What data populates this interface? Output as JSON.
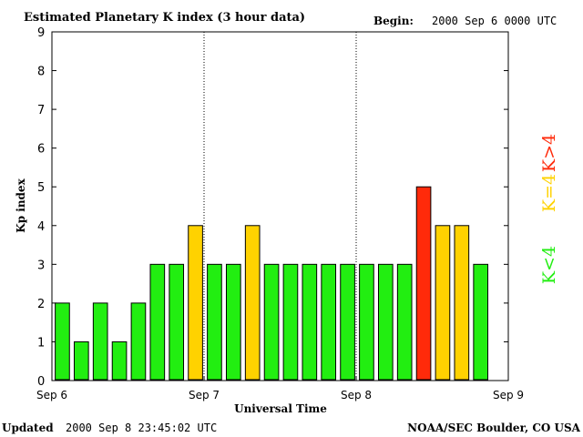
{
  "header": {
    "title": "Estimated Planetary K index (3 hour data)",
    "begin_label": "Begin:",
    "begin_value": "2000 Sep 6 0000 UTC"
  },
  "footer": {
    "updated_label": "Updated",
    "updated_value": "2000 Sep  8 23:45:02 UTC",
    "credit": "NOAA/SEC Boulder, CO USA"
  },
  "legend": {
    "high": "K>4",
    "equal": "K=4",
    "low": "K<4"
  },
  "colors": {
    "low": "#22ee11",
    "equal": "#ffd200",
    "high": "#ff2a0a"
  },
  "chart_data": {
    "type": "bar",
    "title": "Estimated Planetary K index (3 hour data)",
    "xlabel": "Universal Time",
    "ylabel": "Kp index",
    "ylim": [
      0,
      9
    ],
    "yticks": [
      "0",
      "1",
      "2",
      "3",
      "4",
      "5",
      "6",
      "7",
      "8",
      "9"
    ],
    "xticks": [
      "Sep 6",
      "Sep 7",
      "Sep 8",
      "Sep 9"
    ],
    "slots_total": 24,
    "values": [
      2,
      1,
      2,
      1,
      2,
      3,
      3,
      4,
      3,
      3,
      4,
      3,
      3,
      3,
      3,
      3,
      3,
      3,
      3,
      5,
      4,
      4,
      3
    ],
    "day_dividers": [
      8,
      16
    ]
  }
}
